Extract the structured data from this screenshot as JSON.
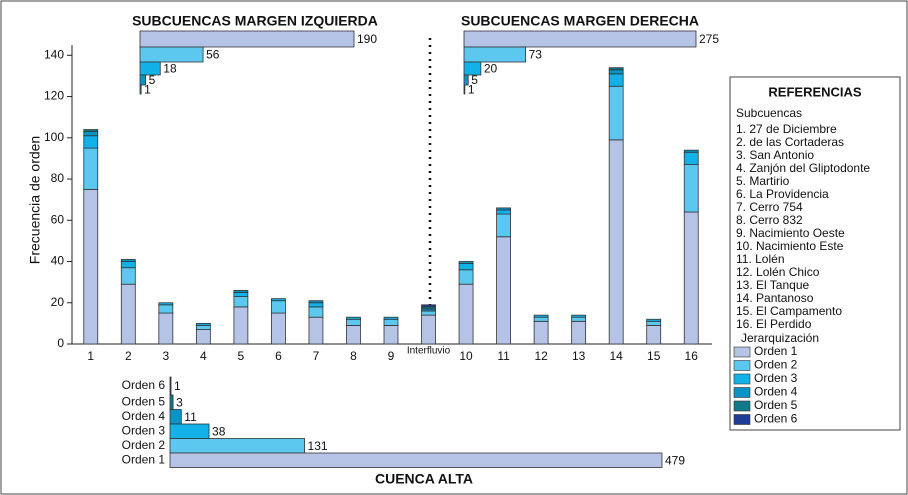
{
  "chart_data": [
    {
      "type": "bar",
      "stacked": true,
      "y_label": "Frecuencia de orden",
      "categories": [
        "1",
        "2",
        "3",
        "4",
        "5",
        "6",
        "7",
        "8",
        "9",
        "Interfluvio",
        "10",
        "11",
        "12",
        "13",
        "14",
        "15",
        "16"
      ],
      "ylim": [
        0,
        145
      ],
      "yticks": [
        0,
        20,
        40,
        60,
        80,
        100,
        120,
        140
      ],
      "legend_title": "Jerarquización",
      "series": [
        {
          "name": "Orden 1",
          "color": "#b4c3e6",
          "values": [
            75,
            29,
            15,
            7,
            18,
            15,
            13,
            9,
            9,
            14,
            29,
            52,
            11,
            11,
            99,
            9,
            64
          ]
        },
        {
          "name": "Orden 2",
          "color": "#5cc8f0",
          "values": [
            20,
            8,
            4,
            2,
            5,
            6,
            5,
            3,
            3,
            2,
            7,
            11,
            2,
            2,
            26,
            2,
            23
          ]
        },
        {
          "name": "Orden 3",
          "color": "#12b2e8",
          "values": [
            6,
            3,
            1,
            1,
            2,
            1,
            2,
            1,
            1,
            0,
            3,
            2,
            1,
            1,
            6,
            1,
            6
          ]
        },
        {
          "name": "Orden 4",
          "color": "#0a94c6",
          "values": [
            2,
            1,
            0,
            0,
            1,
            0,
            1,
            0,
            0,
            1,
            1,
            1,
            0,
            0,
            2,
            0,
            1
          ]
        },
        {
          "name": "Orden 5",
          "color": "#107a8a",
          "values": [
            1,
            0,
            0,
            0,
            0,
            0,
            0,
            0,
            0,
            1,
            0,
            0,
            0,
            0,
            1,
            0,
            0
          ]
        },
        {
          "name": "Orden 6",
          "color": "#1f3c96",
          "values": [
            0,
            0,
            0,
            0,
            0,
            0,
            0,
            0,
            0,
            1,
            0,
            0,
            0,
            0,
            0,
            0,
            0
          ]
        }
      ]
    },
    {
      "type": "barh",
      "title": "SUBCUENCAS MARGEN IZQUIERDA",
      "values": [
        190,
        56,
        18,
        5,
        1
      ],
      "colors": [
        "#b4c3e6",
        "#5cc8f0",
        "#12b2e8",
        "#0a94c6",
        "#107a8a"
      ]
    },
    {
      "type": "barh",
      "title": "SUBCUENCAS MARGEN DERECHA",
      "values": [
        275,
        73,
        20,
        5,
        1
      ],
      "colors": [
        "#b4c3e6",
        "#5cc8f0",
        "#12b2e8",
        "#0a94c6",
        "#107a8a"
      ]
    },
    {
      "type": "barh",
      "title": "CUENCA ALTA",
      "categories": [
        "Orden 1",
        "Orden 2",
        "Orden 3",
        "Orden 4",
        "Orden 5",
        "Orden 6"
      ],
      "values": [
        479,
        131,
        38,
        11,
        3,
        1
      ],
      "colors": [
        "#b4c3e6",
        "#5cc8f0",
        "#12b2e8",
        "#0a94c6",
        "#107a8a",
        "#1f3c96"
      ]
    }
  ],
  "references": {
    "title": "REFERENCIAS",
    "subtitle": "Subcuencas",
    "items": [
      "1. 27 de Diciembre",
      "2. de las Cortaderas",
      "3. San Antonio",
      "4. Zanjón del Gliptodonte",
      "5. Martirio",
      "6. La Providencia",
      "7. Cerro 754",
      "8. Cerro 832",
      "9. Nacimiento Oeste",
      "10. Nacimiento Este",
      "11. Lolén",
      "12. Lolén Chico",
      "13. El Tanque",
      "14. Pantanoso",
      "15. El Campamento",
      "16. El Perdido"
    ]
  }
}
